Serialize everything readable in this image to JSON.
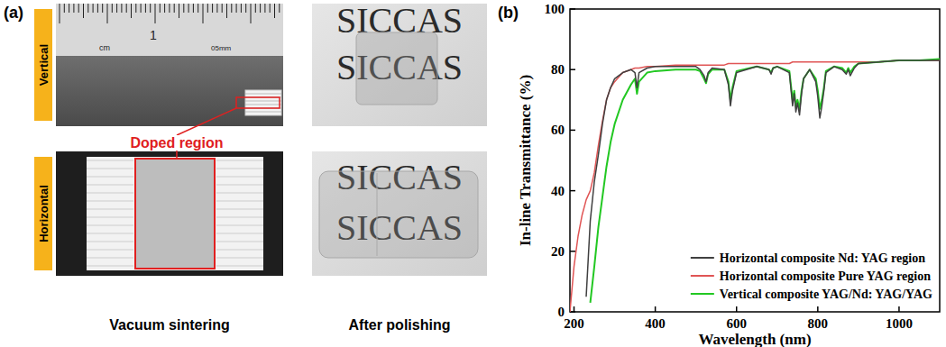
{
  "panel_a": {
    "label": "(a)",
    "rows": [
      "Vertical",
      "Horizontal"
    ],
    "annotation": "Doped region",
    "columns": [
      "Vacuum sintering",
      "After polishing"
    ],
    "watermark": "SICCAS",
    "ruler": [
      "cm",
      "1",
      "05mm"
    ]
  },
  "chart_data": {
    "type": "line",
    "panel_label": "(b)",
    "x_label": "Wavelength (nm)",
    "y_label": "In-line Transmittance (%)",
    "xlim": [
      190,
      1100
    ],
    "xticks": [
      200,
      400,
      600,
      800,
      1000
    ],
    "ylim": [
      0,
      100
    ],
    "yticks": [
      0,
      20,
      40,
      60,
      80,
      100
    ],
    "grid": false,
    "legend": "lower right",
    "x": [
      190,
      200,
      210,
      220,
      230,
      240,
      250,
      260,
      270,
      280,
      290,
      300,
      320,
      340,
      350,
      355,
      360,
      380,
      400,
      450,
      500,
      510,
      520,
      525,
      530,
      540,
      570,
      580,
      585,
      590,
      600,
      650,
      680,
      685,
      690,
      700,
      730,
      738,
      742,
      746,
      750,
      755,
      760,
      765,
      780,
      795,
      800,
      805,
      810,
      815,
      820,
      840,
      860,
      870,
      875,
      880,
      890,
      900,
      950,
      1000,
      1050,
      1100
    ],
    "series": [
      {
        "name": "Horizontal composite Nd: YAG region",
        "color": "#404040",
        "values": [
          null,
          null,
          null,
          null,
          5,
          30,
          43,
          52,
          62,
          70,
          74,
          77,
          79,
          80,
          79,
          74,
          79,
          80.5,
          81,
          81,
          81,
          80,
          78,
          76,
          79,
          80.5,
          80,
          75,
          68,
          73,
          79,
          81,
          80,
          78.5,
          80.5,
          81,
          79,
          68,
          72,
          66,
          69,
          65,
          72,
          77,
          80,
          76,
          71,
          64,
          68,
          73,
          79,
          81,
          80,
          78.5,
          80,
          78,
          80.5,
          82,
          82.5,
          83,
          83,
          83
        ]
      },
      {
        "name": "Horizontal composite Pure YAG region",
        "color": "#e05555",
        "values": [
          0,
          15,
          25,
          32,
          37,
          40,
          46,
          55,
          63,
          70,
          74,
          76,
          79,
          80,
          80.5,
          80.5,
          80.5,
          81,
          81,
          81.5,
          81.5,
          81.5,
          81.5,
          81.5,
          81.5,
          81.5,
          81.5,
          82,
          82,
          82,
          82,
          82,
          82,
          82,
          82,
          82,
          82,
          82.5,
          82.5,
          82.5,
          82.5,
          82.5,
          82.5,
          82.5,
          82.5,
          82.5,
          82.5,
          82.5,
          82.5,
          82.5,
          82.5,
          82.5,
          82.5,
          82.5,
          82.5,
          82.5,
          82.5,
          82.5,
          82.5,
          83,
          83,
          83
        ]
      },
      {
        "name": "Vertical composite YAG/Nd: YAG/YAG",
        "color": "#22c822",
        "values": [
          null,
          null,
          null,
          null,
          null,
          3,
          15,
          28,
          38,
          48,
          56,
          62,
          70,
          75,
          77,
          72,
          76,
          79,
          79.5,
          80,
          80,
          79.5,
          77,
          75.5,
          78.5,
          80,
          80,
          76,
          70,
          74,
          79.5,
          81,
          80,
          79,
          80.5,
          81,
          79.5,
          70,
          73,
          68,
          70,
          67,
          73,
          77,
          80,
          77,
          73,
          67,
          70,
          74,
          79.5,
          81,
          80.5,
          79,
          80.5,
          79,
          81,
          82,
          82.5,
          83,
          83,
          83.5
        ]
      }
    ]
  }
}
